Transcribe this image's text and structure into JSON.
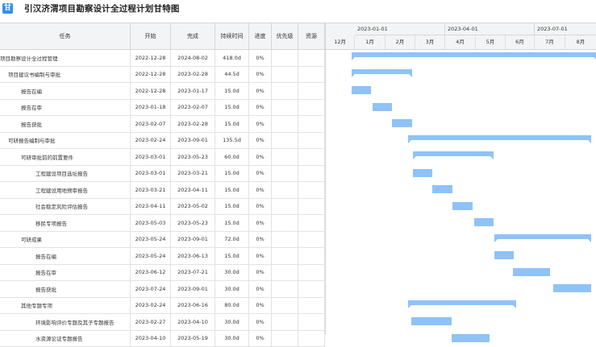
{
  "app": {
    "title": "引汉济渭项目勘察设计全过程计划甘特图",
    "logo_text": "甘"
  },
  "columns": {
    "task": "任务",
    "start": "开始",
    "end": "完成",
    "duration": "持续时间",
    "progress": "进度",
    "priority": "优先级",
    "resource": "资源"
  },
  "timeline": {
    "quarters": [
      "2023-01-01",
      "2023-04-01",
      "2023-07-01"
    ],
    "months": [
      "12月",
      "1月",
      "2月",
      "3月",
      "4月",
      "5月",
      "6月",
      "7月",
      "8月"
    ]
  },
  "rows": [
    {
      "task": "项目勘察设计全过程管理",
      "start": "2022-12-28",
      "end": "2024-08-02",
      "duration": "418.0d",
      "progress": "0%",
      "level": 0,
      "summary": true
    },
    {
      "task": "项目建议书编制与审批",
      "start": "2022-12-28",
      "end": "2023-02-28",
      "duration": "44.5d",
      "progress": "0%",
      "level": 1,
      "summary": true
    },
    {
      "task": "报告在编",
      "start": "2022-12-28",
      "end": "2023-01-17",
      "duration": "15.0d",
      "progress": "0%",
      "level": 2,
      "summary": false
    },
    {
      "task": "报告在审",
      "start": "2023-01-18",
      "end": "2023-02-07",
      "duration": "15.0d",
      "progress": "0%",
      "level": 2,
      "summary": false
    },
    {
      "task": "报告获批",
      "start": "2023-02-07",
      "end": "2023-02-28",
      "duration": "15.0d",
      "progress": "0%",
      "level": 2,
      "summary": false
    },
    {
      "task": "可研报告编制与审批",
      "start": "2023-02-24",
      "end": "2023-09-01",
      "duration": "135.5d",
      "progress": "0%",
      "level": 1,
      "summary": true
    },
    {
      "task": "可研审批前的前置要件",
      "start": "2023-03-01",
      "end": "2023-05-23",
      "duration": "60.0d",
      "progress": "0%",
      "level": 2,
      "summary": true
    },
    {
      "task": "工程建设项目选址报告",
      "start": "2023-03-01",
      "end": "2023-03-21",
      "duration": "15.0d",
      "progress": "0%",
      "level": 3,
      "summary": false
    },
    {
      "task": "工程建设用地预审报告",
      "start": "2023-03-21",
      "end": "2023-04-11",
      "duration": "15.0d",
      "progress": "0%",
      "level": 3,
      "summary": false
    },
    {
      "task": "社会稳定风险评估报告",
      "start": "2023-04-11",
      "end": "2023-05-02",
      "duration": "15.0d",
      "progress": "0%",
      "level": 3,
      "summary": false
    },
    {
      "task": "移民专项报告",
      "start": "2023-05-03",
      "end": "2023-05-23",
      "duration": "15.0d",
      "progress": "0%",
      "level": 3,
      "summary": false
    },
    {
      "task": "可研成果",
      "start": "2023-05-24",
      "end": "2023-09-01",
      "duration": "72.0d",
      "progress": "0%",
      "level": 2,
      "summary": true
    },
    {
      "task": "报告在编",
      "start": "2023-05-24",
      "end": "2023-06-13",
      "duration": "15.0d",
      "progress": "0%",
      "level": 3,
      "summary": false
    },
    {
      "task": "报告在审",
      "start": "2023-06-12",
      "end": "2023-07-21",
      "duration": "30.0d",
      "progress": "0%",
      "level": 3,
      "summary": false
    },
    {
      "task": "报告获批",
      "start": "2023-07-24",
      "end": "2023-09-01",
      "duration": "30.0d",
      "progress": "0%",
      "level": 3,
      "summary": false
    },
    {
      "task": "其他专题专项",
      "start": "2023-02-24",
      "end": "2023-06-16",
      "duration": "80.0d",
      "progress": "0%",
      "level": 2,
      "summary": true
    },
    {
      "task": "环境影响评价专题及其子专题报告",
      "start": "2023-02-27",
      "end": "2023-04-10",
      "duration": "30.0d",
      "progress": "0%",
      "level": 3,
      "summary": false
    },
    {
      "task": "水资源论证专题报告",
      "start": "2023-04-10",
      "end": "2023-05-19",
      "duration": "30.0d",
      "progress": "0%",
      "level": 3,
      "summary": false
    }
  ]
}
